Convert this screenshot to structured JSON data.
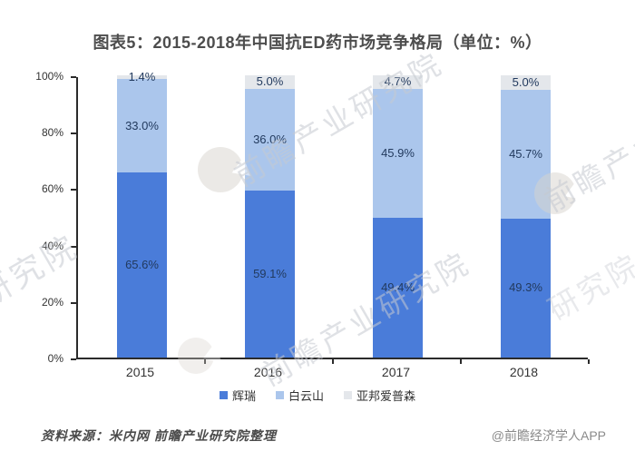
{
  "title": "图表5：2015-2018年中国抗ED药市场竞争格局（单位：%）",
  "chart_data": {
    "type": "bar",
    "stacked": true,
    "title": "图表5：2015-2018年中国抗ED药市场竞争格局（单位：%）",
    "categories": [
      "2015",
      "2016",
      "2017",
      "2018"
    ],
    "series": [
      {
        "name": "辉瑞",
        "color": "#4a7cd9",
        "values": [
          65.6,
          59.1,
          49.4,
          49.3
        ]
      },
      {
        "name": "白云山",
        "color": "#abc6ec",
        "values": [
          33.0,
          36.0,
          45.9,
          45.7
        ]
      },
      {
        "name": "亚邦爱普森",
        "color": "#e4e7eb",
        "values": [
          1.4,
          5.0,
          4.7,
          5.0
        ]
      }
    ],
    "data_labels": [
      [
        "65.6%",
        "59.1%",
        "49.4%",
        "49.3%"
      ],
      [
        "33.0%",
        "36.0%",
        "45.9%",
        "45.7%"
      ],
      [
        "1.4%",
        "5.0%",
        "4.7%",
        "5.0%"
      ]
    ],
    "xlabel": "",
    "ylabel": "",
    "y_ticks": [
      "0%",
      "20%",
      "40%",
      "60%",
      "80%",
      "100%"
    ],
    "ylim": [
      0,
      100
    ],
    "grid": false,
    "legend_position": "bottom",
    "label_color": "#223a5e",
    "axis_color": "#2b2b2b"
  },
  "footer": {
    "source": "资料来源：米内网 前瞻产业研究院整理",
    "credit": "@前瞻经济学人APP"
  },
  "watermarks": {
    "brand_text": "前瞻产业研究院",
    "partial_text": "研究院",
    "logo": "qianzhan-circle-logo"
  }
}
